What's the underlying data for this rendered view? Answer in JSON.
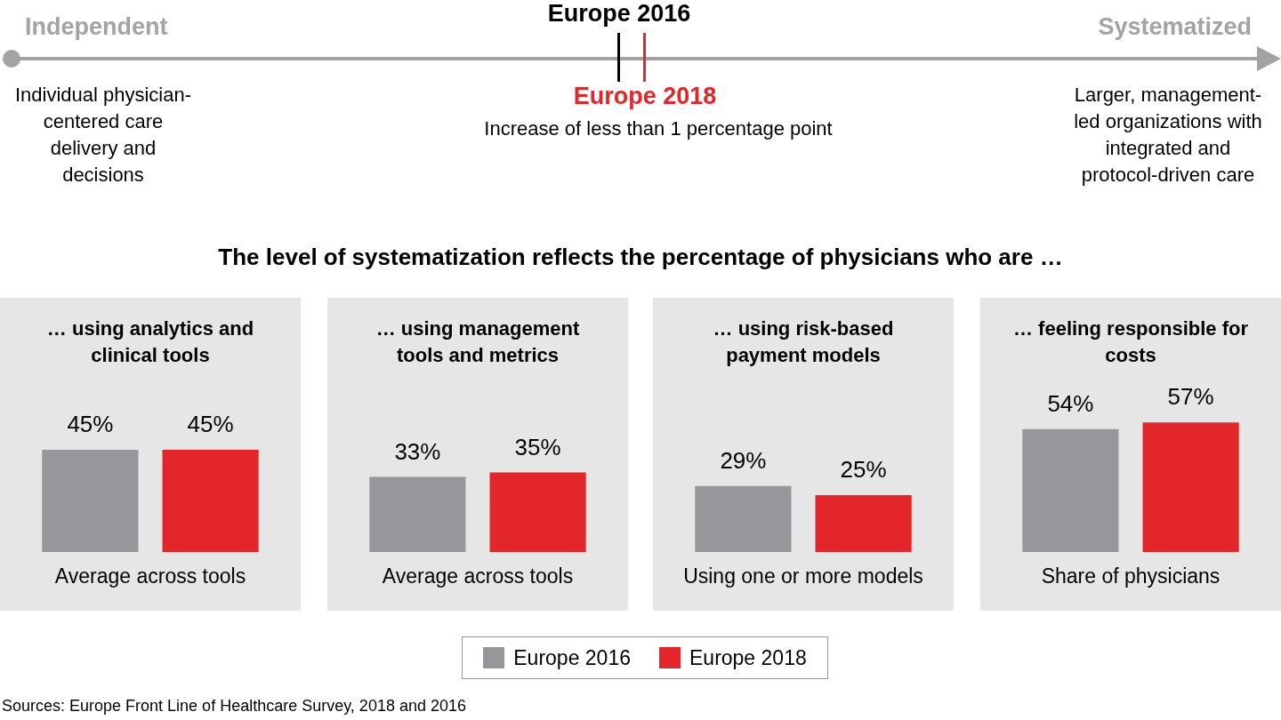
{
  "chart_data": [
    {
      "type": "other",
      "annotations": [
        "Independent",
        "Systematized",
        "Individual physician-centered care delivery and decisions",
        "Larger, management-led organizations with integrated and protocol-driven care",
        "Europe 2016",
        "Europe 2018",
        "Increase of less than 1 percentage point",
        "The level of systematization reflects the percentage of physicians who are …",
        "Sources: Europe Front Line of Healthcare Survey, 2018 and 2016"
      ]
    },
    {
      "type": "bar",
      "title": "… using analytics and clinical tools",
      "xlabel": "Average across tools",
      "categories": [
        null
      ],
      "legend": "bottom",
      "series": [
        {
          "name": "Europe 2016",
          "color": "#97979b",
          "values": [
            45
          ],
          "value_labels": [
            "45%"
          ]
        },
        {
          "name": "Europe 2018",
          "color": "#e3262a",
          "values": [
            45
          ],
          "value_labels": [
            "45%"
          ]
        }
      ]
    },
    {
      "type": "bar",
      "title": "… using management tools and metrics",
      "xlabel": "Average across tools",
      "categories": [
        null
      ],
      "series": [
        {
          "color": "#97979b",
          "values": [
            33
          ],
          "value_labels": [
            "33%"
          ]
        },
        {
          "color": "#e3262a",
          "values": [
            35
          ],
          "value_labels": [
            "35%"
          ]
        }
      ]
    },
    {
      "type": "bar",
      "title": "… using risk-based payment models",
      "xlabel": "Using one or more models",
      "categories": [
        null
      ],
      "series": [
        {
          "color": "#97979b",
          "values": [
            29
          ],
          "value_labels": [
            "29%"
          ]
        },
        {
          "color": "#e3262a",
          "values": [
            25
          ],
          "value_labels": [
            "25%"
          ]
        }
      ]
    },
    {
      "type": "bar",
      "title": "… feeling responsible for costs",
      "xlabel": "Share of physicians",
      "categories": [
        null
      ],
      "series": [
        {
          "color": "#97979b",
          "values": [
            54
          ],
          "value_labels": [
            "54%"
          ]
        },
        {
          "color": "#e3262a",
          "values": [
            57
          ],
          "value_labels": [
            "57%"
          ]
        }
      ]
    }
  ]
}
